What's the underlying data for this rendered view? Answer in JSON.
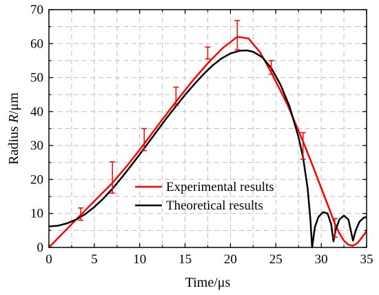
{
  "chart_data": {
    "type": "line",
    "xlabel": "Time/μs",
    "ylabel_prefix": "Radius ",
    "ylabel_var": "R",
    "ylabel_suffix": "/μm",
    "xlim": [
      0,
      35
    ],
    "ylim": [
      0,
      70
    ],
    "x_ticks": [
      0,
      5,
      10,
      15,
      20,
      25,
      30,
      35
    ],
    "y_ticks": [
      0,
      10,
      20,
      30,
      40,
      50,
      60,
      70
    ],
    "grid": true,
    "legend_position": "lower-center",
    "series": [
      {
        "name": "Experimental results",
        "color": "#ff0000",
        "points": [
          [
            0,
            0
          ],
          [
            1.75,
            4.8
          ],
          [
            3.5,
            9.6
          ],
          [
            5.25,
            14.3
          ],
          [
            7,
            19
          ],
          [
            8.75,
            24.5
          ],
          [
            10.5,
            30.5
          ],
          [
            12.25,
            36.8
          ],
          [
            14,
            42.9
          ],
          [
            15.75,
            48.8
          ],
          [
            17.5,
            54.2
          ],
          [
            19.1,
            58.6
          ],
          [
            20.75,
            62
          ],
          [
            22,
            61.5
          ],
          [
            23.25,
            57.5
          ],
          [
            24.5,
            51.5
          ],
          [
            26.25,
            42.2
          ],
          [
            28,
            31.2
          ],
          [
            29,
            24.5
          ],
          [
            30,
            17.5
          ],
          [
            31,
            10.6
          ],
          [
            31.5,
            7
          ],
          [
            32,
            4.2
          ],
          [
            32.5,
            2
          ],
          [
            33,
            0.8
          ],
          [
            33.5,
            0.5
          ],
          [
            34,
            1.3
          ],
          [
            34.5,
            3
          ],
          [
            35,
            4.8
          ]
        ]
      },
      {
        "name": "Theoretical results",
        "color": "#000000",
        "points": [
          [
            0,
            6.2
          ],
          [
            1,
            6.4
          ],
          [
            2,
            7.1
          ],
          [
            3,
            8.2
          ],
          [
            4,
            9.8
          ],
          [
            5,
            11.9
          ],
          [
            6,
            14.4
          ],
          [
            7,
            17.3
          ],
          [
            8,
            20.5
          ],
          [
            9,
            23.9
          ],
          [
            10,
            27.4
          ],
          [
            11,
            31
          ],
          [
            12,
            34.6
          ],
          [
            13,
            38.2
          ],
          [
            14,
            41.6
          ],
          [
            15,
            44.9
          ],
          [
            16,
            48
          ],
          [
            17,
            50.9
          ],
          [
            18,
            53.5
          ],
          [
            19,
            55.6
          ],
          [
            20,
            57.1
          ],
          [
            21,
            57.9
          ],
          [
            21.8,
            58
          ],
          [
            22.5,
            57.6
          ],
          [
            23.5,
            56
          ],
          [
            24.5,
            52.8
          ],
          [
            25.5,
            48
          ],
          [
            26.5,
            41.6
          ],
          [
            27.5,
            32.5
          ],
          [
            28,
            26.5
          ],
          [
            28.5,
            17.5
          ],
          [
            28.8,
            8.5
          ],
          [
            29,
            0
          ],
          [
            29.3,
            6
          ],
          [
            29.7,
            9
          ],
          [
            30.2,
            10.4
          ],
          [
            30.7,
            10
          ],
          [
            31.1,
            6.8
          ],
          [
            31.35,
            1.8
          ],
          [
            31.6,
            5.2
          ],
          [
            32,
            8.2
          ],
          [
            32.5,
            9.4
          ],
          [
            33,
            8.2
          ],
          [
            33.5,
            2
          ],
          [
            33.8,
            5
          ],
          [
            34.2,
            7.5
          ],
          [
            34.7,
            8.8
          ],
          [
            35,
            8.9
          ]
        ]
      }
    ],
    "error_bars": [
      {
        "x": 3.5,
        "y": 9.5,
        "low": 8,
        "high": 11.6
      },
      {
        "x": 7,
        "y": 19.5,
        "low": 16,
        "high": 25.2
      },
      {
        "x": 10.5,
        "y": 31.5,
        "low": 28.5,
        "high": 35
      },
      {
        "x": 14,
        "y": 44.5,
        "low": 41.8,
        "high": 47.2
      },
      {
        "x": 17.5,
        "y": 57,
        "low": 55.5,
        "high": 59
      },
      {
        "x": 20.75,
        "y": 62.5,
        "low": 58.2,
        "high": 66.8
      },
      {
        "x": 24.5,
        "y": 53,
        "low": 51,
        "high": 55
      },
      {
        "x": 28,
        "y": 30,
        "low": 26,
        "high": 33.8
      },
      {
        "x": 31.5,
        "y": 5.5,
        "low": 3,
        "high": 8.5
      }
    ]
  }
}
